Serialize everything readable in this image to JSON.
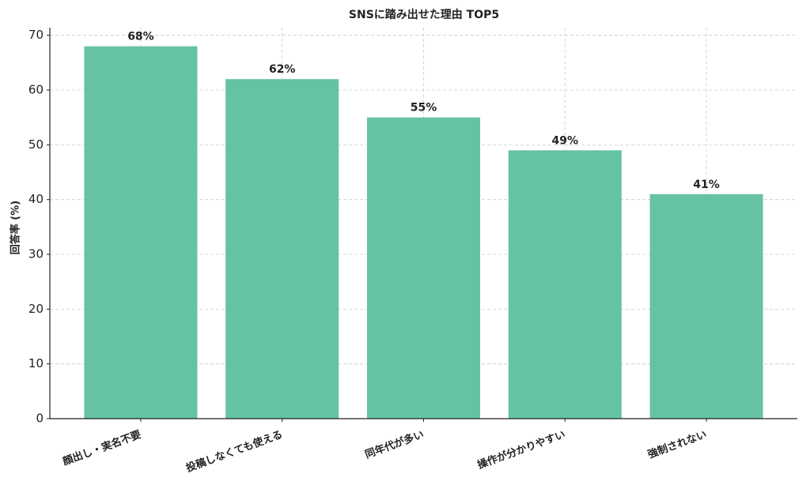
{
  "chart_data": {
    "type": "bar",
    "title": "SNSに踏み出せた理由 TOP5",
    "y_label": "回答率 (%)",
    "categories": [
      "顔出し・実名不要",
      "投稿しなくても使える",
      "同年代が多い",
      "操作が分かりやすい",
      "強制されない"
    ],
    "values": [
      68,
      62,
      55,
      49,
      41
    ],
    "value_labels": [
      "68%",
      "62%",
      "55%",
      "49%",
      "41%"
    ],
    "color": "#66c2a5",
    "ylim": [
      0,
      71.4
    ],
    "yticks": [
      0,
      10,
      20,
      30,
      40,
      50,
      60,
      70
    ],
    "grid": true
  }
}
